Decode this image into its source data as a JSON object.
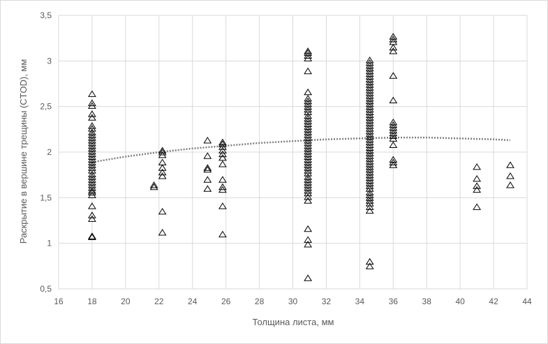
{
  "chart_data": {
    "type": "scatter",
    "xlabel": "Толщина листа, мм",
    "ylabel": "Раскрытие в вершине трещины (CTOD), мм",
    "xlim": [
      16,
      44
    ],
    "ylim": [
      0.5,
      3.5
    ],
    "x_ticks": [
      "16",
      "18",
      "20",
      "22",
      "24",
      "26",
      "28",
      "30",
      "32",
      "34",
      "36",
      "38",
      "40",
      "42",
      "44"
    ],
    "y_ticks": [
      "0,5",
      "1",
      "1,5",
      "2",
      "2,5",
      "3",
      "3,5"
    ],
    "grid": "vertical and horizontal",
    "legend": "none",
    "marker": "open-triangle",
    "colors": {
      "marker": "#000000",
      "trend": "#7f7f7f",
      "grid": "#d9d9d9",
      "text": "#595959"
    },
    "series": [
      {
        "points": [
          [
            18,
            1.07
          ],
          [
            18,
            1.08
          ],
          [
            18,
            1.27
          ],
          [
            18,
            1.31
          ],
          [
            18,
            1.41
          ],
          [
            18,
            1.53
          ],
          [
            18,
            1.56
          ],
          [
            18,
            1.58
          ],
          [
            18,
            1.61
          ],
          [
            18,
            1.64
          ],
          [
            18,
            1.67
          ],
          [
            18,
            1.7
          ],
          [
            18,
            1.73
          ],
          [
            18,
            1.76
          ],
          [
            18,
            1.8
          ],
          [
            18,
            1.83
          ],
          [
            18,
            1.86
          ],
          [
            18,
            1.89
          ],
          [
            18,
            1.92
          ],
          [
            18,
            1.95
          ],
          [
            18,
            1.98
          ],
          [
            18,
            2.01
          ],
          [
            18,
            2.04
          ],
          [
            18,
            2.07
          ],
          [
            18,
            2.1
          ],
          [
            18,
            2.13
          ],
          [
            18,
            2.16
          ],
          [
            18,
            2.19
          ],
          [
            18,
            2.22
          ],
          [
            18,
            2.26
          ],
          [
            18,
            2.29
          ],
          [
            18,
            2.38
          ],
          [
            18,
            2.42
          ],
          [
            18,
            2.51
          ],
          [
            18,
            2.54
          ],
          [
            18,
            2.64
          ],
          [
            21.7,
            1.62
          ],
          [
            21.7,
            1.64
          ],
          [
            22.2,
            1.12
          ],
          [
            22.2,
            1.35
          ],
          [
            22.2,
            1.74
          ],
          [
            22.2,
            1.78
          ],
          [
            22.2,
            1.83
          ],
          [
            22.2,
            1.89
          ],
          [
            22.2,
            1.97
          ],
          [
            22.2,
            2.0
          ],
          [
            22.2,
            2.02
          ],
          [
            24.9,
            1.6
          ],
          [
            24.9,
            1.7
          ],
          [
            24.9,
            1.81
          ],
          [
            24.9,
            1.83
          ],
          [
            24.9,
            1.96
          ],
          [
            24.9,
            2.13
          ],
          [
            25.8,
            1.1
          ],
          [
            25.8,
            1.41
          ],
          [
            25.8,
            1.59
          ],
          [
            25.8,
            1.62
          ],
          [
            25.8,
            1.7
          ],
          [
            25.8,
            1.87
          ],
          [
            25.8,
            1.94
          ],
          [
            25.8,
            1.98
          ],
          [
            25.8,
            2.02
          ],
          [
            25.8,
            2.06
          ],
          [
            25.8,
            2.09
          ],
          [
            25.8,
            2.11
          ],
          [
            30.9,
            0.62
          ],
          [
            30.9,
            0.99
          ],
          [
            30.9,
            1.04
          ],
          [
            30.9,
            1.16
          ],
          [
            30.9,
            1.47
          ],
          [
            30.9,
            1.51
          ],
          [
            30.9,
            1.55
          ],
          [
            30.9,
            1.58
          ],
          [
            30.9,
            1.61
          ],
          [
            30.9,
            1.64
          ],
          [
            30.9,
            1.67
          ],
          [
            30.9,
            1.7
          ],
          [
            30.9,
            1.73
          ],
          [
            30.9,
            1.77
          ],
          [
            30.9,
            1.8
          ],
          [
            30.9,
            1.83
          ],
          [
            30.9,
            1.86
          ],
          [
            30.9,
            1.89
          ],
          [
            30.9,
            1.92
          ],
          [
            30.9,
            1.95
          ],
          [
            30.9,
            1.98
          ],
          [
            30.9,
            2.01
          ],
          [
            30.9,
            2.04
          ],
          [
            30.9,
            2.07
          ],
          [
            30.9,
            2.1
          ],
          [
            30.9,
            2.13
          ],
          [
            30.9,
            2.16
          ],
          [
            30.9,
            2.19
          ],
          [
            30.9,
            2.22
          ],
          [
            30.9,
            2.25
          ],
          [
            30.9,
            2.28
          ],
          [
            30.9,
            2.31
          ],
          [
            30.9,
            2.34
          ],
          [
            30.9,
            2.37
          ],
          [
            30.9,
            2.4
          ],
          [
            30.9,
            2.44
          ],
          [
            30.9,
            2.47
          ],
          [
            30.9,
            2.5
          ],
          [
            30.9,
            2.53
          ],
          [
            30.9,
            2.56
          ],
          [
            30.9,
            2.59
          ],
          [
            30.9,
            2.66
          ],
          [
            30.9,
            2.89
          ],
          [
            30.9,
            3.03
          ],
          [
            30.9,
            3.06
          ],
          [
            30.9,
            3.09
          ],
          [
            30.9,
            3.11
          ],
          [
            34.6,
            0.75
          ],
          [
            34.6,
            0.8
          ],
          [
            34.6,
            1.36
          ],
          [
            34.6,
            1.4
          ],
          [
            34.6,
            1.44
          ],
          [
            34.6,
            1.47
          ],
          [
            34.6,
            1.5
          ],
          [
            34.6,
            1.53
          ],
          [
            34.6,
            1.56
          ],
          [
            34.6,
            1.6
          ],
          [
            34.6,
            1.63
          ],
          [
            34.6,
            1.66
          ],
          [
            34.6,
            1.69
          ],
          [
            34.6,
            1.72
          ],
          [
            34.6,
            1.75
          ],
          [
            34.6,
            1.78
          ],
          [
            34.6,
            1.81
          ],
          [
            34.6,
            1.84
          ],
          [
            34.6,
            1.87
          ],
          [
            34.6,
            1.9
          ],
          [
            34.6,
            1.93
          ],
          [
            34.6,
            1.96
          ],
          [
            34.6,
            1.99
          ],
          [
            34.6,
            2.02
          ],
          [
            34.6,
            2.05
          ],
          [
            34.6,
            2.08
          ],
          [
            34.6,
            2.11
          ],
          [
            34.6,
            2.14
          ],
          [
            34.6,
            2.17
          ],
          [
            34.6,
            2.2
          ],
          [
            34.6,
            2.23
          ],
          [
            34.6,
            2.26
          ],
          [
            34.6,
            2.29
          ],
          [
            34.6,
            2.32
          ],
          [
            34.6,
            2.35
          ],
          [
            34.6,
            2.38
          ],
          [
            34.6,
            2.41
          ],
          [
            34.6,
            2.44
          ],
          [
            34.6,
            2.47
          ],
          [
            34.6,
            2.5
          ],
          [
            34.6,
            2.53
          ],
          [
            34.6,
            2.56
          ],
          [
            34.6,
            2.59
          ],
          [
            34.6,
            2.62
          ],
          [
            34.6,
            2.65
          ],
          [
            34.6,
            2.68
          ],
          [
            34.6,
            2.71
          ],
          [
            34.6,
            2.74
          ],
          [
            34.6,
            2.77
          ],
          [
            34.6,
            2.8
          ],
          [
            34.6,
            2.83
          ],
          [
            34.6,
            2.86
          ],
          [
            34.6,
            2.89
          ],
          [
            34.6,
            2.92
          ],
          [
            34.6,
            2.95
          ],
          [
            34.6,
            2.98
          ],
          [
            34.6,
            3.01
          ],
          [
            36,
            1.86
          ],
          [
            36,
            1.89
          ],
          [
            36,
            1.92
          ],
          [
            36,
            2.08
          ],
          [
            36,
            2.15
          ],
          [
            36,
            2.18
          ],
          [
            36,
            2.21
          ],
          [
            36,
            2.24
          ],
          [
            36,
            2.27
          ],
          [
            36,
            2.3
          ],
          [
            36,
            2.33
          ],
          [
            36,
            2.57
          ],
          [
            36,
            2.84
          ],
          [
            36,
            3.11
          ],
          [
            36,
            3.15
          ],
          [
            36,
            3.21
          ],
          [
            36,
            3.24
          ],
          [
            36,
            3.27
          ],
          [
            41,
            1.4
          ],
          [
            41,
            1.59
          ],
          [
            41,
            1.63
          ],
          [
            41,
            1.71
          ],
          [
            41,
            1.84
          ],
          [
            43,
            1.64
          ],
          [
            43,
            1.74
          ],
          [
            43,
            1.86
          ]
        ]
      }
    ],
    "trendline": {
      "type": "polynomial",
      "points": [
        [
          18,
          1.89
        ],
        [
          20,
          1.95
        ],
        [
          22,
          2.0
        ],
        [
          24,
          2.04
        ],
        [
          26,
          2.07
        ],
        [
          28,
          2.1
        ],
        [
          30,
          2.12
        ],
        [
          32,
          2.14
        ],
        [
          34,
          2.15
        ],
        [
          36,
          2.16
        ],
        [
          38,
          2.16
        ],
        [
          40,
          2.15
        ],
        [
          42,
          2.14
        ],
        [
          43,
          2.13
        ]
      ]
    }
  }
}
